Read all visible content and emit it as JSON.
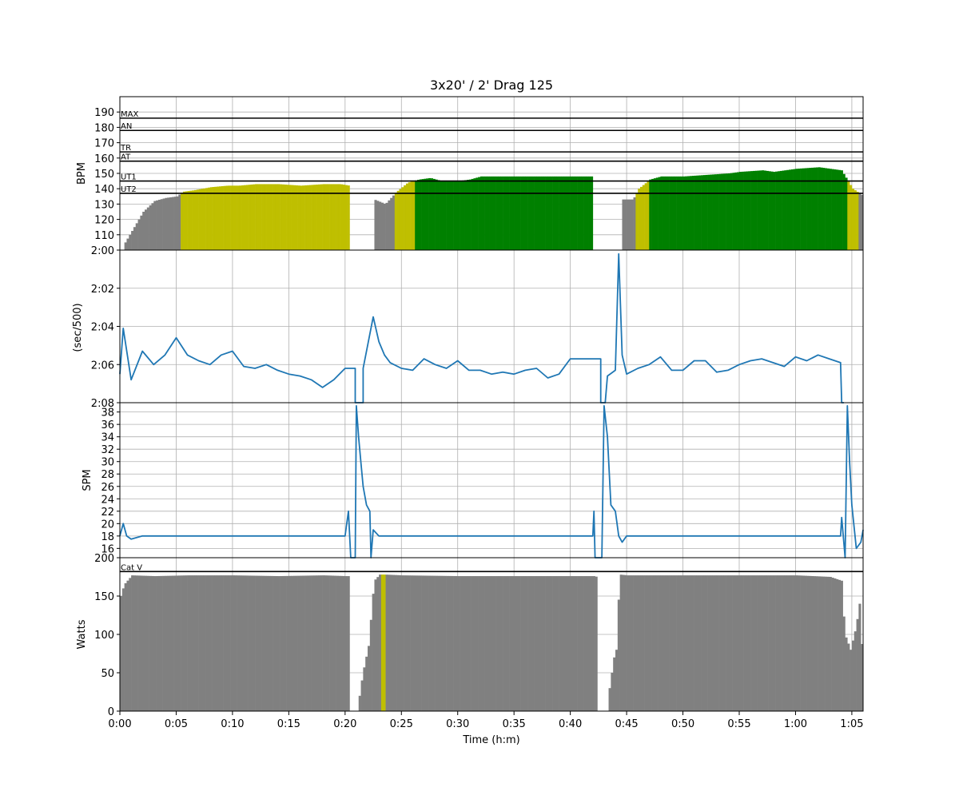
{
  "title": "3x20' / 2' Drag 125",
  "xlabel": "Time (h:m)",
  "x_ticks": [
    "0:00",
    "0:05",
    "0:10",
    "0:15",
    "0:20",
    "0:25",
    "0:30",
    "0:35",
    "0:40",
    "0:45",
    "0:50",
    "0:55",
    "1:00",
    "1:05"
  ],
  "x_tick_minutes": [
    0,
    5,
    10,
    15,
    20,
    25,
    30,
    35,
    40,
    45,
    50,
    55,
    60,
    65
  ],
  "x_range_minutes": [
    0,
    66
  ],
  "zone_colors": {
    "gray": "#808080",
    "ut2": "#bfbf00",
    "ut1": "#008000",
    "line": "#1f77b4",
    "cat": "#bfbf00"
  },
  "chart_data": [
    {
      "type": "area",
      "name": "hr",
      "ylabel": "BPM",
      "ylim": [
        100,
        200
      ],
      "y_ticks": [
        "110",
        "120",
        "130",
        "140",
        "150",
        "160",
        "170",
        "180",
        "190"
      ],
      "y_tick_values": [
        110,
        120,
        130,
        140,
        150,
        160,
        170,
        180,
        190
      ],
      "zones": [
        {
          "label": "MAX",
          "value": 186
        },
        {
          "label": "AN",
          "value": 178
        },
        {
          "label": "TR",
          "value": 164
        },
        {
          "label": "AT",
          "value": 158
        },
        {
          "label": "UT1",
          "value": 145
        },
        {
          "label": "UT2",
          "value": 137
        }
      ],
      "grid": true,
      "x": [
        0.4,
        1.2,
        2.0,
        3.0,
        4.0,
        5.0,
        5.5,
        6.5,
        8.0,
        9.5,
        10.5,
        12,
        14,
        16,
        18,
        19.5,
        20.3,
        20.8,
        21.5,
        22.5,
        23.5,
        24.5,
        25.5,
        26.5,
        27.5,
        28.5,
        30,
        31,
        32,
        34,
        36,
        38,
        40,
        42,
        42.6,
        43.3,
        44.5,
        45.5,
        46.0,
        47.0,
        48,
        50,
        52,
        54,
        55,
        57,
        58,
        60,
        62,
        63,
        64,
        65,
        66
      ],
      "y": [
        105,
        115,
        125,
        132,
        134,
        135,
        138,
        139,
        141,
        142,
        142,
        143,
        143,
        142,
        143,
        143,
        142,
        null,
        null,
        133,
        130,
        138,
        144,
        146,
        147,
        145,
        145,
        146,
        148,
        148,
        148,
        148,
        148,
        148,
        null,
        null,
        133,
        133,
        140,
        146,
        148,
        148,
        149,
        150,
        151,
        152,
        151,
        153,
        154,
        153,
        152,
        140,
        135
      ]
    },
    {
      "type": "line",
      "name": "pace",
      "ylabel": "(sec/500)",
      "ylim": [
        128,
        120
      ],
      "y_ticks": [
        "2:00",
        "2:02",
        "2:04",
        "2:06",
        "2:08"
      ],
      "y_tick_values": [
        120,
        122,
        124,
        126,
        128
      ],
      "grid": true,
      "x": [
        0,
        0.3,
        1,
        2,
        3,
        4,
        5,
        6,
        7,
        8,
        9,
        10,
        11,
        12,
        13,
        14,
        15,
        16,
        17,
        18,
        19,
        20,
        20.9,
        20.9,
        21.6,
        21.6,
        22.5,
        23,
        23.5,
        24,
        25,
        26,
        27,
        28,
        29,
        30,
        31,
        32,
        33,
        34,
        35,
        36,
        37,
        38,
        39,
        40,
        41,
        42,
        42.7,
        42.7,
        43.1,
        43.3,
        44,
        44.3,
        44.6,
        45,
        46,
        47,
        48,
        49,
        50,
        51,
        52,
        53,
        54,
        55,
        56,
        57,
        58,
        59,
        60,
        61,
        62,
        63,
        64,
        64.1,
        64.3
      ],
      "y": [
        126.5,
        124.1,
        126.8,
        125.3,
        126.0,
        125.5,
        124.6,
        125.5,
        125.8,
        126.0,
        125.5,
        125.3,
        126.1,
        126.2,
        126.0,
        126.3,
        126.5,
        126.6,
        126.8,
        127.2,
        126.8,
        126.2,
        126.2,
        128.6,
        128.6,
        126.2,
        123.5,
        124.8,
        125.5,
        125.9,
        126.2,
        126.3,
        125.7,
        126.0,
        126.2,
        125.8,
        126.3,
        126.3,
        126.5,
        126.4,
        126.5,
        126.3,
        126.2,
        126.7,
        126.5,
        125.7,
        125.7,
        125.7,
        125.7,
        128.6,
        128.6,
        126.6,
        126.3,
        120.2,
        125.5,
        126.5,
        126.2,
        126.0,
        125.6,
        126.3,
        126.3,
        125.8,
        125.8,
        126.4,
        126.3,
        126.0,
        125.8,
        125.7,
        125.9,
        126.1,
        125.6,
        125.8,
        125.5,
        125.7,
        125.9,
        128.1,
        128.6
      ]
    },
    {
      "type": "line",
      "name": "spm",
      "ylabel": "SPM",
      "ylim": [
        14.5,
        39.5
      ],
      "y_ticks": [
        "16",
        "18",
        "20",
        "22",
        "24",
        "26",
        "28",
        "30",
        "32",
        "34",
        "36",
        "38"
      ],
      "y_tick_values": [
        16,
        18,
        20,
        22,
        24,
        26,
        28,
        30,
        32,
        34,
        36,
        38
      ],
      "grid": true,
      "x": [
        0,
        0.3,
        0.6,
        1,
        2,
        3,
        4,
        5,
        6,
        7,
        8,
        9,
        10,
        11,
        12,
        13,
        14,
        15,
        16,
        17,
        18,
        19,
        20,
        20.3,
        20.5,
        20.9,
        21.0,
        21.2,
        21.4,
        21.6,
        21.9,
        22.2,
        22.3,
        22.5,
        23,
        24,
        25,
        26,
        27,
        28,
        29,
        30,
        31,
        32,
        33,
        34,
        35,
        36,
        37,
        38,
        39,
        40,
        41,
        42,
        42.1,
        42.2,
        42.8,
        43.0,
        43.3,
        43.6,
        44,
        44.3,
        44.6,
        45,
        46,
        47,
        48,
        49,
        50,
        51,
        52,
        53,
        54,
        55,
        56,
        57,
        58,
        59,
        60,
        61,
        62,
        63,
        64,
        64.1,
        64.4,
        64.6,
        64.8,
        65.0,
        65.4,
        65.8,
        66
      ],
      "y": [
        18,
        20,
        18,
        17.5,
        18,
        18,
        18,
        18,
        18,
        18,
        18,
        18,
        18,
        18,
        18,
        18,
        18,
        18,
        18,
        18,
        18,
        18,
        18,
        22,
        14.5,
        14.5,
        39,
        34,
        30,
        26,
        23,
        22,
        14.5,
        19,
        18,
        18,
        18,
        18,
        18,
        18,
        18,
        18,
        18,
        18,
        18,
        18,
        18,
        18,
        18,
        18,
        18,
        18,
        18,
        18,
        22,
        14.5,
        14.5,
        39,
        34,
        23,
        22,
        18,
        17,
        18,
        18,
        18,
        18,
        18,
        18,
        18,
        18,
        18,
        18,
        18,
        18,
        18,
        18,
        18,
        18,
        18,
        18,
        18,
        18,
        21,
        14.5,
        39,
        30,
        23,
        16,
        17,
        19
      ]
    },
    {
      "type": "area",
      "name": "watts",
      "ylabel": "Watts",
      "ylim": [
        0,
        200
      ],
      "y_ticks": [
        "0",
        "50",
        "100",
        "150",
        "200"
      ],
      "y_tick_values": [
        0,
        50,
        100,
        150,
        200
      ],
      "cat_line": {
        "label": "Cat V",
        "value": 182
      },
      "grid": true,
      "x": [
        0,
        0.3,
        1,
        3,
        6,
        10,
        14,
        18,
        20,
        20.2,
        20.2,
        21.1,
        21.2,
        21.5,
        22,
        22.5,
        23,
        23.5,
        25,
        30,
        35,
        40,
        42,
        42.3,
        42.3,
        43.2,
        43.3,
        43.8,
        44,
        44.3,
        45,
        50,
        55,
        60,
        63,
        64,
        64.3,
        64.8,
        65.3,
        65.6,
        66
      ],
      "y": [
        150,
        165,
        177,
        176,
        177,
        177,
        176,
        177,
        176,
        176,
        0,
        0,
        20,
        50,
        85,
        170,
        178,
        178,
        177,
        176,
        176,
        176,
        176,
        175,
        0,
        0,
        20,
        70,
        80,
        178,
        177,
        177,
        177,
        177,
        175,
        170,
        100,
        80,
        110,
        140,
        35
      ]
    }
  ]
}
